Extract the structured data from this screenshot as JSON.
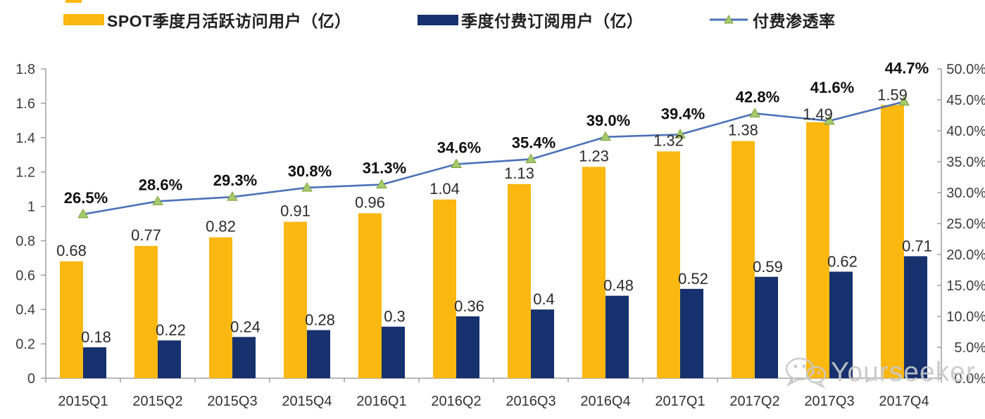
{
  "legend": [
    {
      "label": "SPOT季度月活跃访问用户（亿）",
      "type": "bar",
      "color": "#FBB811"
    },
    {
      "label": "季度付费订阅用户（亿）",
      "type": "bar",
      "color": "#16316D"
    },
    {
      "label": "付费渗透率",
      "type": "line",
      "color": "#4C72B8",
      "marker_color": "#A5C96B",
      "marker_stroke": "#7FA33C"
    }
  ],
  "chart_data": {
    "type": "bar+line combo",
    "title": "",
    "categories": [
      "2015Q1",
      "2015Q2",
      "2015Q3",
      "2015Q4",
      "2016Q1",
      "2016Q2",
      "2016Q3",
      "2016Q4",
      "2017Q1",
      "2017Q2",
      "2017Q3",
      "2017Q4"
    ],
    "series": [
      {
        "name": "SPOT季度月活跃访问用户（亿）",
        "type": "bar",
        "axis": "left",
        "color": "#FBB811",
        "values": [
          0.68,
          0.77,
          0.82,
          0.91,
          0.96,
          1.04,
          1.13,
          1.23,
          1.32,
          1.38,
          1.49,
          1.59
        ],
        "labels": [
          "0.68",
          "0.77",
          "0.82",
          "0.91",
          "0.96",
          "1.04",
          "1.13",
          "1.23",
          "1.32",
          "1.38",
          "1.49",
          "1.59"
        ]
      },
      {
        "name": "季度付费订阅用户（亿）",
        "type": "bar",
        "axis": "left",
        "color": "#16316D",
        "values": [
          0.18,
          0.22,
          0.24,
          0.28,
          0.3,
          0.36,
          0.4,
          0.48,
          0.52,
          0.59,
          0.62,
          0.71
        ],
        "labels": [
          "0.18",
          "0.22",
          "0.24",
          "0.28",
          "0.3",
          "0.36",
          "0.4",
          "0.48",
          "0.52",
          "0.59",
          "0.62",
          "0.71"
        ]
      },
      {
        "name": "付费渗透率",
        "type": "line",
        "axis": "right",
        "color": "#4C72B8",
        "marker": "triangle",
        "marker_color": "#A5C96B",
        "values": [
          26.5,
          28.6,
          29.3,
          30.8,
          31.3,
          34.6,
          35.4,
          39.0,
          39.4,
          42.8,
          41.6,
          44.7
        ],
        "labels": [
          "26.5%",
          "28.6%",
          "29.3%",
          "30.8%",
          "31.3%",
          "34.6%",
          "35.4%",
          "39.0%",
          "39.4%",
          "42.8%",
          "41.6%",
          "44.7%"
        ]
      }
    ],
    "left_axis": {
      "min": 0,
      "max": 1.8,
      "ticks": [
        "0",
        "0.2",
        "0.4",
        "0.6",
        "0.8",
        "1",
        "1.2",
        "1.4",
        "1.6",
        "1.8"
      ]
    },
    "right_axis": {
      "min": 0,
      "max": 50,
      "ticks": [
        "0.0%",
        "5.0%",
        "10.0%",
        "15.0%",
        "20.0%",
        "25.0%",
        "30.0%",
        "35.0%",
        "40.0%",
        "45.0%",
        "50.0%"
      ]
    },
    "grid": false,
    "legend_position": "top",
    "axis_color": "#a0a0a0"
  },
  "watermark": {
    "text": "Yourseeker",
    "icon": "wechat-icon",
    "color": "#c9c9c9"
  }
}
